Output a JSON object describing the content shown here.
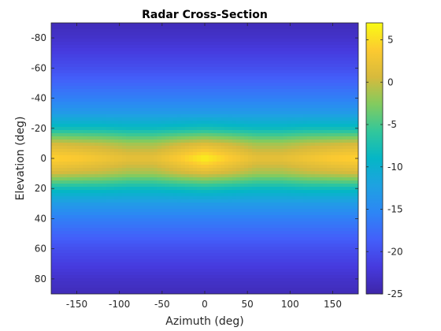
{
  "chart_data": {
    "type": "heatmap",
    "title": "Radar Cross-Section",
    "xlabel": "Azimuth (deg)",
    "ylabel": "Elevation (deg)",
    "xlim": [
      -180,
      180
    ],
    "ylim": [
      -90,
      90
    ],
    "y_direction": "reversed",
    "xticks": [
      -150,
      -100,
      -50,
      0,
      50,
      100,
      150
    ],
    "yticks": [
      -80,
      -60,
      -40,
      -20,
      0,
      20,
      40,
      60,
      80
    ],
    "colorbar": {
      "range": [
        -25,
        7
      ],
      "ticks": [
        5,
        0,
        -5,
        -10,
        -15,
        -20,
        -25
      ],
      "colormap": "parula"
    },
    "azimuth": [
      -180,
      -150,
      -120,
      -90,
      -60,
      -30,
      0,
      30,
      60,
      90,
      120,
      150,
      180
    ],
    "elevation": [
      -90,
      -80,
      -70,
      -60,
      -50,
      -40,
      -30,
      -20,
      -10,
      0,
      10,
      20,
      30,
      40,
      50,
      60,
      70,
      80,
      90
    ],
    "values": [
      [
        -24,
        -24,
        -24,
        -24,
        -24,
        -24,
        -24,
        -24,
        -24,
        -24,
        -24,
        -24,
        -24
      ],
      [
        -23,
        -23,
        -23,
        -23,
        -23,
        -23,
        -23,
        -23,
        -23,
        -23,
        -23,
        -23,
        -23
      ],
      [
        -21.5,
        -21.5,
        -21.5,
        -21.5,
        -21.5,
        -21.5,
        -21.5,
        -21.5,
        -21.5,
        -21.5,
        -21.5,
        -21.5,
        -21.5
      ],
      [
        -20,
        -20,
        -20,
        -20,
        -20,
        -20,
        -20,
        -20,
        -20,
        -20,
        -20,
        -20,
        -20
      ],
      [
        -18,
        -18,
        -18,
        -18,
        -18,
        -18,
        -18,
        -18,
        -18,
        -18,
        -18,
        -18,
        -18
      ],
      [
        -16,
        -16,
        -16,
        -16,
        -16,
        -16,
        -16,
        -16,
        -16,
        -16,
        -16,
        -16,
        -16
      ],
      [
        -13,
        -13,
        -13,
        -13,
        -13,
        -13,
        -13,
        -13,
        -13,
        -13,
        -13,
        -13,
        -13
      ],
      [
        -8,
        -8,
        -8,
        -8.5,
        -8.5,
        -8,
        -7.5,
        -8,
        -8.5,
        -8.5,
        -8,
        -8,
        -8
      ],
      [
        0.5,
        0,
        -0.5,
        -1.5,
        -1.5,
        0,
        1,
        0,
        -1.5,
        -1.5,
        -0.5,
        0,
        0.5
      ],
      [
        4.5,
        4,
        3,
        2,
        2,
        4,
        6.5,
        4,
        2,
        2,
        3,
        4,
        4.5
      ],
      [
        0.5,
        0,
        -0.5,
        -1.5,
        -1.5,
        0,
        1,
        0,
        -1.5,
        -1.5,
        -0.5,
        0,
        0.5
      ],
      [
        -8,
        -8,
        -8,
        -8.5,
        -8.5,
        -8,
        -7.5,
        -8,
        -8.5,
        -8.5,
        -8,
        -8,
        -8
      ],
      [
        -13,
        -13,
        -13,
        -13,
        -13,
        -13,
        -13,
        -13,
        -13,
        -13,
        -13,
        -13,
        -13
      ],
      [
        -16,
        -16,
        -16,
        -16,
        -16,
        -16,
        -16,
        -16,
        -16,
        -16,
        -16,
        -16,
        -16
      ],
      [
        -18,
        -18,
        -18,
        -18,
        -18,
        -18,
        -18,
        -18,
        -18,
        -18,
        -18,
        -18,
        -18
      ],
      [
        -20,
        -20,
        -20,
        -20,
        -20,
        -20,
        -20,
        -20,
        -20,
        -20,
        -20,
        -20,
        -20
      ],
      [
        -21.5,
        -21.5,
        -21.5,
        -21.5,
        -21.5,
        -21.5,
        -21.5,
        -21.5,
        -21.5,
        -21.5,
        -21.5,
        -21.5,
        -21.5
      ],
      [
        -23,
        -23,
        -23,
        -23,
        -23,
        -23,
        -23,
        -23,
        -23,
        -23,
        -23,
        -23,
        -23
      ],
      [
        -24,
        -24,
        -24,
        -24,
        -24,
        -24,
        -24,
        -24,
        -24,
        -24,
        -24,
        -24,
        -24
      ]
    ]
  }
}
